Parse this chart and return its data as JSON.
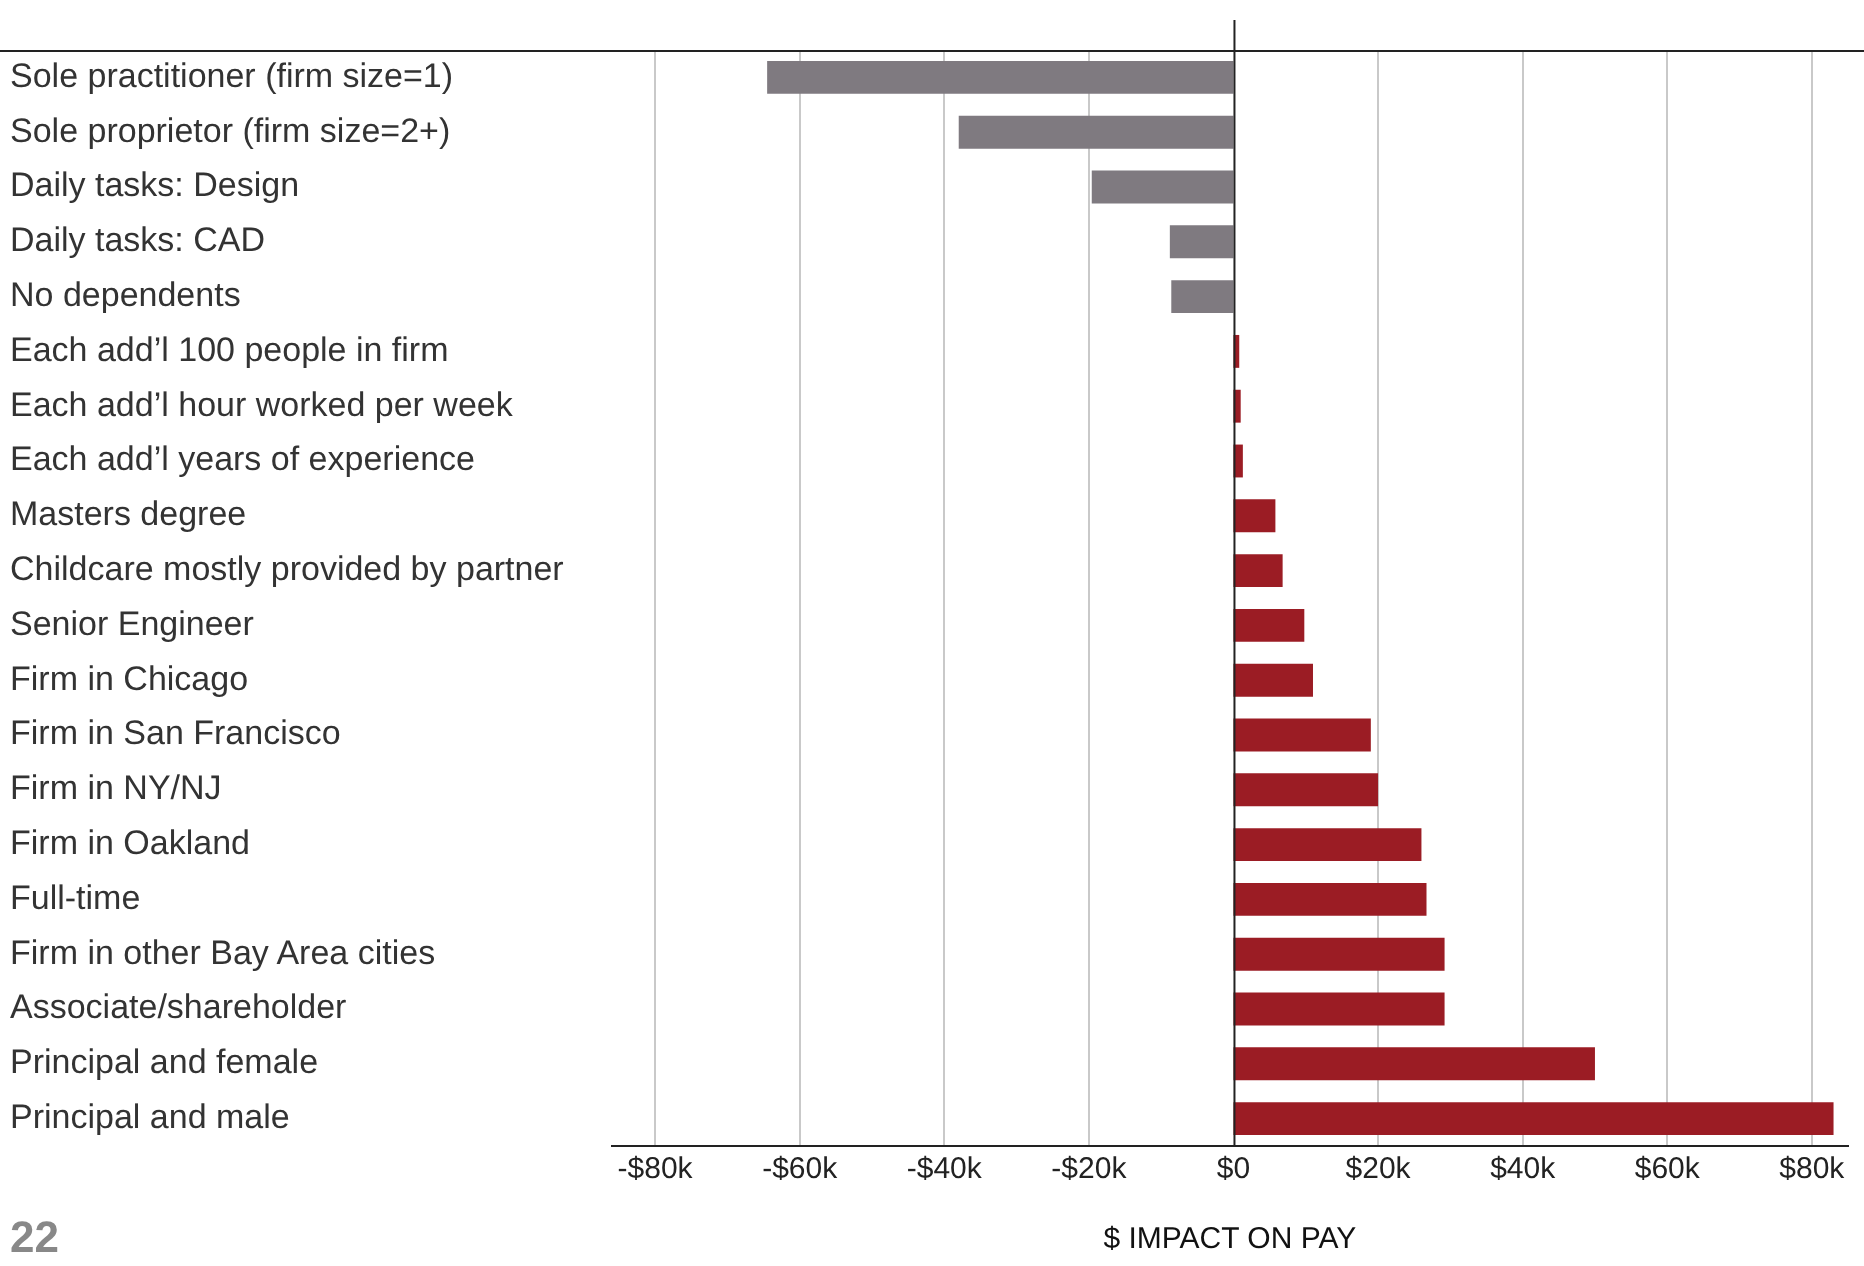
{
  "chart_data": {
    "type": "bar",
    "orientation": "horizontal",
    "xlabel": "$ IMPACT ON PAY",
    "categories": [
      "Sole practitioner (firm size=1)",
      "Sole proprietor (firm size=2+)",
      "Daily tasks: Design",
      "Daily tasks: CAD",
      "No dependents",
      "Each add’l 100 people in firm",
      "Each add’l hour worked per week",
      "Each add’l years of experience",
      "Masters degree",
      "Childcare mostly provided by partner",
      "Senior Engineer",
      "Firm in Chicago",
      "Firm in San Francisco",
      "Firm in NY/NJ",
      "Firm in Oakland",
      "Full-time",
      "Firm in other Bay Area cities",
      "Associate/shareholder",
      "Principal and female",
      "Principal and male"
    ],
    "values": [
      -64.5,
      -38,
      -19.6,
      -8.8,
      -8.6,
      0.8,
      1,
      1.3,
      5.8,
      6.8,
      9.8,
      11,
      19,
      20,
      26,
      26.7,
      29.2,
      29.2,
      50,
      83
    ],
    "colors": [
      "#7f7a80",
      "#7f7a80",
      "#7f7a80",
      "#7f7a80",
      "#7f7a80",
      "#9b1c24",
      "#9b1c24",
      "#9b1c24",
      "#9b1c24",
      "#9b1c24",
      "#9b1c24",
      "#9b1c24",
      "#9b1c24",
      "#9b1c24",
      "#9b1c24",
      "#9b1c24",
      "#9b1c24",
      "#9b1c24",
      "#9b1c24",
      "#9b1c24"
    ],
    "xlim": [
      -86,
      85
    ],
    "xticks": [
      {
        "value": -80,
        "label": "-$80k"
      },
      {
        "value": -60,
        "label": "-$60k"
      },
      {
        "value": -40,
        "label": "-$40k"
      },
      {
        "value": -20,
        "label": "-$20k"
      },
      {
        "value": 0,
        "label": "$0"
      },
      {
        "value": 20,
        "label": "$20k"
      },
      {
        "value": 40,
        "label": "$40k"
      },
      {
        "value": 60,
        "label": "$60k"
      },
      {
        "value": 80,
        "label": "$80k"
      }
    ],
    "grid": "x",
    "legend": false,
    "annotations": [
      "22"
    ]
  }
}
